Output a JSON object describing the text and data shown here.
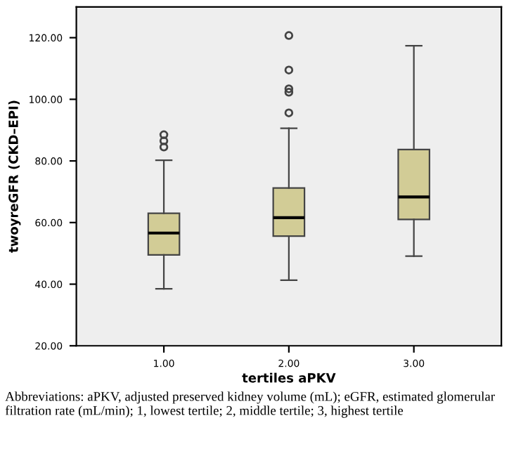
{
  "chart_data": {
    "type": "box",
    "xlabel": "tertiles aPKV",
    "ylabel": "twoyreGFR (CKD–EPI)",
    "categories": [
      "1.00",
      "2.00",
      "3.00"
    ],
    "boxes": [
      {
        "low": 38.5,
        "q1": 49.5,
        "median": 56.6,
        "q3": 63,
        "high": 80.2,
        "outliers": [
          84.5,
          86.5,
          88.5
        ]
      },
      {
        "low": 41.3,
        "q1": 55.6,
        "median": 61.6,
        "q3": 71.2,
        "high": 90.6,
        "outliers": [
          95.6,
          102.3,
          103.4,
          109.5,
          120.7
        ]
      },
      {
        "low": 49.1,
        "q1": 61,
        "median": 68.3,
        "q3": 83.7,
        "high": 117.4
      }
    ],
    "color": "#d2cc96",
    "ylim": [
      20,
      130
    ],
    "yticks": [
      {
        "value": 20,
        "label": "20.00"
      },
      {
        "value": 40,
        "label": "40.00"
      },
      {
        "value": 60,
        "label": "60.00"
      },
      {
        "value": 80,
        "label": "80.00"
      },
      {
        "value": 100,
        "label": "100.00"
      },
      {
        "value": 120,
        "label": "120.00"
      }
    ],
    "grid": false,
    "annotations": [
      "Abbreviations: aPKV, adjusted preserved kidney volume (mL); eGFR, estimated glomerular filtration rate (mL/min); 1, lowest tertile; 2, middle tertile; 3, highest tertile"
    ]
  }
}
